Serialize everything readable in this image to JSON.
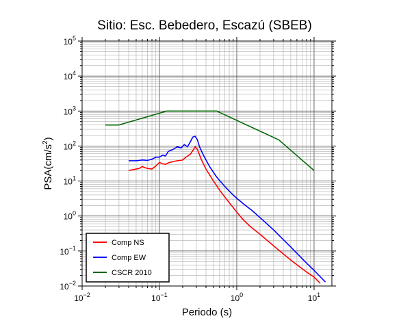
{
  "chart_data": {
    "type": "line",
    "title": "Sitio: Esc. Bebedero, Escazú (SBEB)",
    "xlabel": "Periodo (s)",
    "ylabel": "PSA(cm/s²)",
    "ylabel_base": "PSA(cm/s",
    "ylabel_sup": "2",
    "ylabel_close": ")",
    "xscale": "log",
    "yscale": "log",
    "xlim": [
      0.01,
      17
    ],
    "ylim": [
      0.01,
      100000
    ],
    "grid": true,
    "legend_position": "bottom-left",
    "x_tick_labels": [
      {
        "value": 0.01,
        "base": "10",
        "exp": "−2"
      },
      {
        "value": 0.1,
        "base": "10",
        "exp": "−1"
      },
      {
        "value": 1,
        "base": "10",
        "exp": "0"
      },
      {
        "value": 10,
        "base": "10",
        "exp": "1"
      }
    ],
    "y_tick_labels": [
      {
        "value": 0.01,
        "base": "10",
        "exp": "−2"
      },
      {
        "value": 0.1,
        "base": "10",
        "exp": "−1"
      },
      {
        "value": 1,
        "base": "10",
        "exp": "0"
      },
      {
        "value": 10,
        "base": "10",
        "exp": "1"
      },
      {
        "value": 100,
        "base": "10",
        "exp": "2"
      },
      {
        "value": 1000,
        "base": "10",
        "exp": "3"
      },
      {
        "value": 10000,
        "base": "10",
        "exp": "4"
      },
      {
        "value": 100000,
        "base": "10",
        "exp": "5"
      }
    ],
    "series": [
      {
        "name": "Comp NS",
        "color": "#ff0000",
        "points": [
          [
            0.04,
            20
          ],
          [
            0.05,
            22
          ],
          [
            0.055,
            23
          ],
          [
            0.06,
            26
          ],
          [
            0.065,
            24
          ],
          [
            0.07,
            23
          ],
          [
            0.08,
            22
          ],
          [
            0.09,
            27
          ],
          [
            0.1,
            34
          ],
          [
            0.11,
            31
          ],
          [
            0.12,
            30
          ],
          [
            0.13,
            33
          ],
          [
            0.15,
            36
          ],
          [
            0.17,
            38
          ],
          [
            0.2,
            40
          ],
          [
            0.22,
            48
          ],
          [
            0.25,
            58
          ],
          [
            0.27,
            74
          ],
          [
            0.29,
            95
          ],
          [
            0.31,
            80
          ],
          [
            0.35,
            40
          ],
          [
            0.4,
            22
          ],
          [
            0.5,
            10
          ],
          [
            0.6,
            5.5
          ],
          [
            0.7,
            3.5
          ],
          [
            0.8,
            2.4
          ],
          [
            1.0,
            1.3
          ],
          [
            1.2,
            0.8
          ],
          [
            1.5,
            0.5
          ],
          [
            2.0,
            0.3
          ],
          [
            3.0,
            0.14
          ],
          [
            5.0,
            0.055
          ],
          [
            8.0,
            0.025
          ],
          [
            10.0,
            0.018
          ],
          [
            12.0,
            0.012
          ]
        ]
      },
      {
        "name": "Comp EW",
        "color": "#0000ff",
        "points": [
          [
            0.04,
            38
          ],
          [
            0.05,
            38
          ],
          [
            0.06,
            40
          ],
          [
            0.07,
            39
          ],
          [
            0.08,
            42
          ],
          [
            0.09,
            48
          ],
          [
            0.1,
            48
          ],
          [
            0.11,
            55
          ],
          [
            0.12,
            52
          ],
          [
            0.13,
            70
          ],
          [
            0.15,
            80
          ],
          [
            0.17,
            95
          ],
          [
            0.19,
            88
          ],
          [
            0.21,
            110
          ],
          [
            0.23,
            95
          ],
          [
            0.25,
            130
          ],
          [
            0.27,
            180
          ],
          [
            0.29,
            190
          ],
          [
            0.31,
            150
          ],
          [
            0.33,
            95
          ],
          [
            0.37,
            55
          ],
          [
            0.45,
            25
          ],
          [
            0.55,
            13
          ],
          [
            0.7,
            7
          ],
          [
            0.85,
            4.5
          ],
          [
            1.0,
            3.2
          ],
          [
            1.3,
            2.0
          ],
          [
            1.6,
            1.4
          ],
          [
            2.0,
            0.9
          ],
          [
            3.0,
            0.4
          ],
          [
            5.0,
            0.13
          ],
          [
            8.0,
            0.045
          ],
          [
            10.0,
            0.028
          ],
          [
            14.0,
            0.013
          ]
        ]
      },
      {
        "name": "CSCR 2010",
        "color": "#006600",
        "points": [
          [
            0.02,
            400
          ],
          [
            0.03,
            400
          ],
          [
            0.125,
            1000
          ],
          [
            0.55,
            1000
          ],
          [
            3.5,
            150
          ],
          [
            10.0,
            20
          ]
        ]
      }
    ]
  }
}
